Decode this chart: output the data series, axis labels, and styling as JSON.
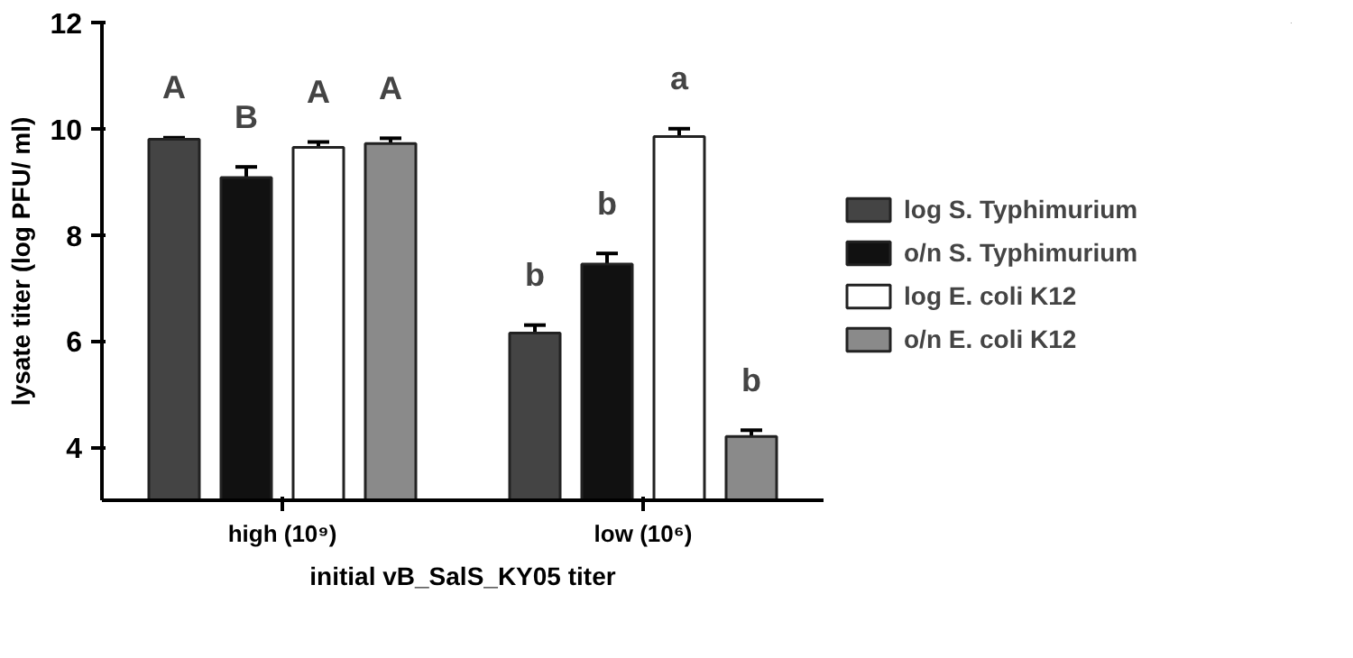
{
  "chart_data": {
    "type": "bar",
    "xlabel": "initial vB_SalS_KY05 titer",
    "ylabel": "lysate titer (log PFU/ ml)",
    "categories": [
      "high (10⁹)",
      "low (10⁶)"
    ],
    "series": [
      {
        "name": "log S. Typhimurium",
        "color": "#444444",
        "values": [
          9.8,
          6.15
        ],
        "errors": [
          0.03,
          0.15
        ]
      },
      {
        "name": "o/n S. Typhimurium",
        "color": "#111111",
        "values": [
          9.08,
          7.45
        ],
        "errors": [
          0.2,
          0.2
        ]
      },
      {
        "name": "log E. coli K12",
        "color": "#ffffff",
        "values": [
          9.65,
          9.85
        ],
        "errors": [
          0.1,
          0.15
        ]
      },
      {
        "name": "o/n E. coli K12",
        "color": "#8a8a8a",
        "values": [
          9.72,
          4.2
        ],
        "errors": [
          0.1,
          0.12
        ]
      }
    ],
    "annotations": [
      "A",
      "b",
      "B",
      "b",
      "A",
      "a",
      "A",
      "b"
    ],
    "ylim": [
      3,
      12
    ],
    "yticks": [
      4,
      6,
      8,
      10,
      12
    ],
    "grid": false,
    "legend": "right"
  }
}
